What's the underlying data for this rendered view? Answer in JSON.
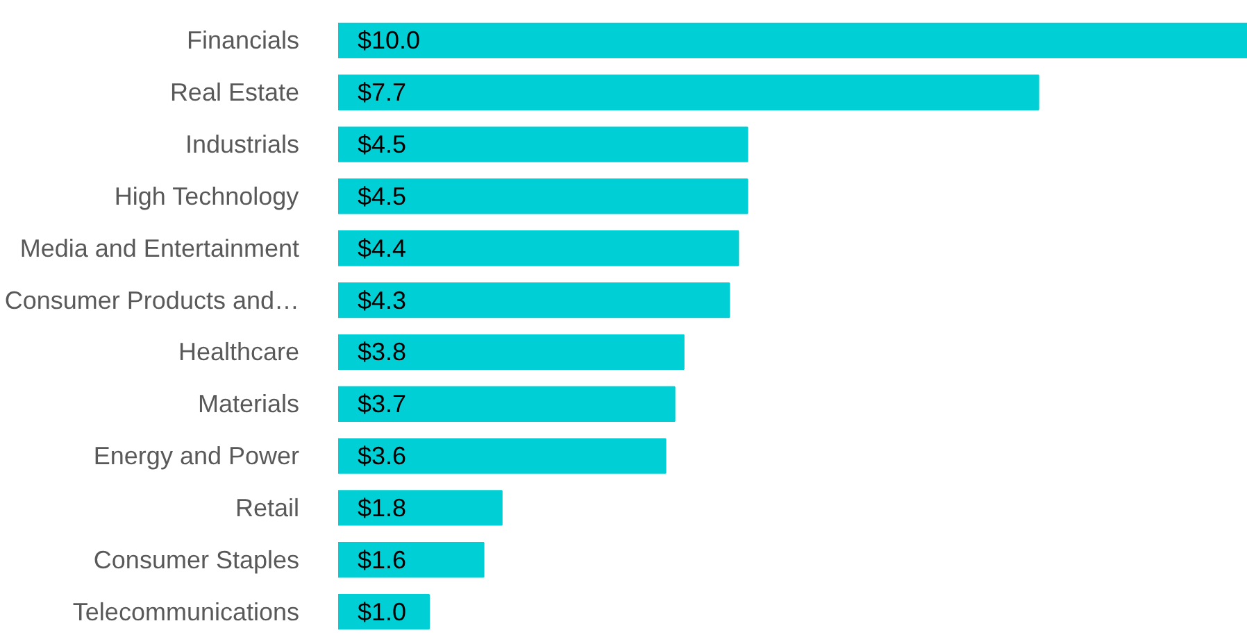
{
  "chart_data": {
    "type": "bar",
    "orientation": "horizontal",
    "categories": [
      "Financials",
      "Real Estate",
      "Industrials",
      "High Technology",
      "Media and Entertainment",
      "Consumer Products and…",
      "Healthcare",
      "Materials",
      "Energy and Power",
      "Retail",
      "Consumer Staples",
      "Telecommunications"
    ],
    "values": [
      10.0,
      7.7,
      4.5,
      4.5,
      4.4,
      4.3,
      3.8,
      3.7,
      3.6,
      1.8,
      1.6,
      1.0
    ],
    "value_labels": [
      "$10.0",
      "$7.7",
      "$4.5",
      "$4.5",
      "$4.4",
      "$4.3",
      "$3.8",
      "$3.7",
      "$3.6",
      "$1.8",
      "$1.6",
      "$1.0"
    ],
    "color": "#00d0d5"
  }
}
